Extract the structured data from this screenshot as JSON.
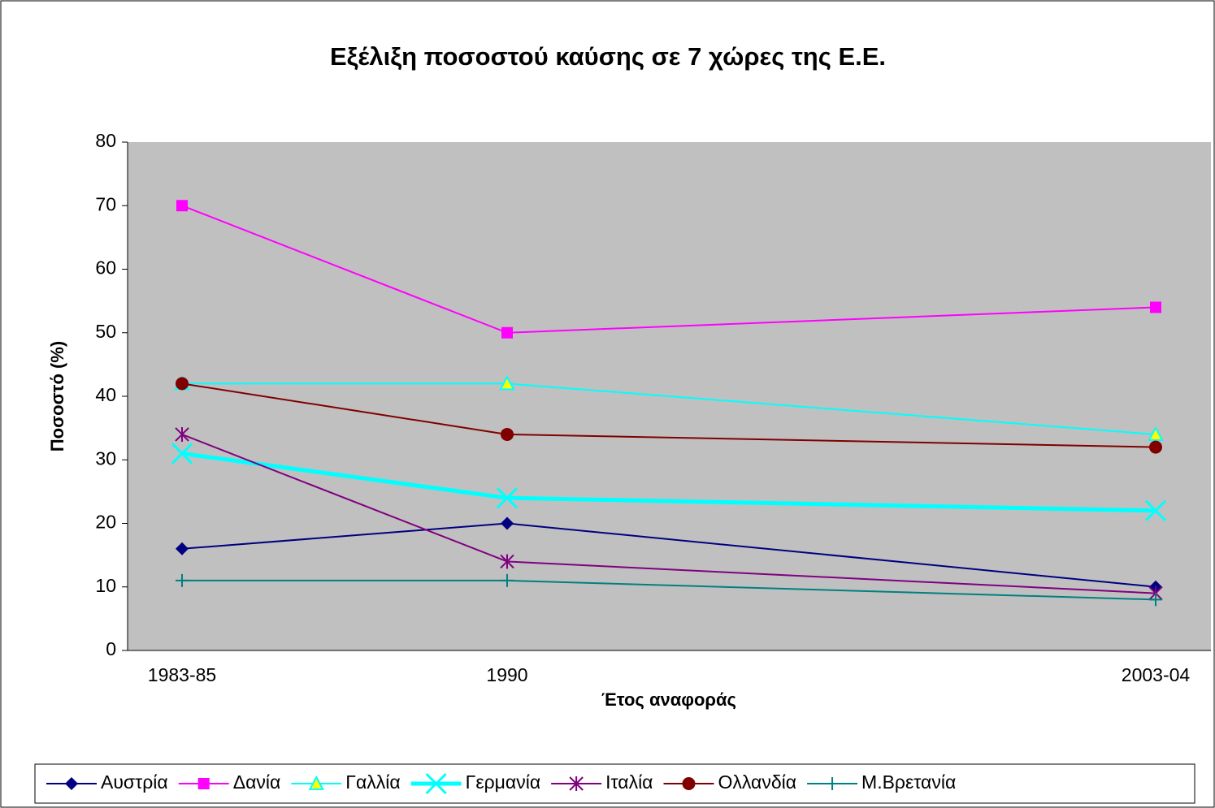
{
  "chart_data": {
    "type": "line",
    "title": "Εξέλιξη ποσοστού καύσης σε 7 χώρες της Ε.Ε.",
    "x_label": "Έτος αναφοράς",
    "y_label": "Ποσοστό (%)",
    "categories": [
      "1983-85",
      "1990",
      "2003-04"
    ],
    "ylim": [
      0,
      80
    ],
    "yticks": [
      0,
      10,
      20,
      30,
      40,
      50,
      60,
      70,
      80
    ],
    "grid": false,
    "legend": "bottom",
    "series": [
      {
        "name": "Αυστρία",
        "color": "#000080",
        "marker": "diamond",
        "values": [
          16,
          20,
          10
        ]
      },
      {
        "name": "Δανία",
        "color": "#ff00ff",
        "marker": "square",
        "values": [
          70,
          50,
          54
        ]
      },
      {
        "name": "Γαλλία",
        "color": "#00ffff",
        "marker": "triangle",
        "values": [
          42,
          42,
          34
        ]
      },
      {
        "name": "Γερμανία",
        "color": "#00ffff",
        "marker": "x",
        "values": [
          31,
          24,
          22
        ]
      },
      {
        "name": "Ιταλία",
        "color": "#800080",
        "marker": "star",
        "values": [
          34,
          14,
          9
        ]
      },
      {
        "name": "Ολλανδία",
        "color": "#800000",
        "marker": "circle",
        "values": [
          42,
          34,
          32
        ]
      },
      {
        "name": "Μ.Βρετανία",
        "color": "#008080",
        "marker": "plus",
        "values": [
          11,
          11,
          8
        ]
      }
    ]
  }
}
